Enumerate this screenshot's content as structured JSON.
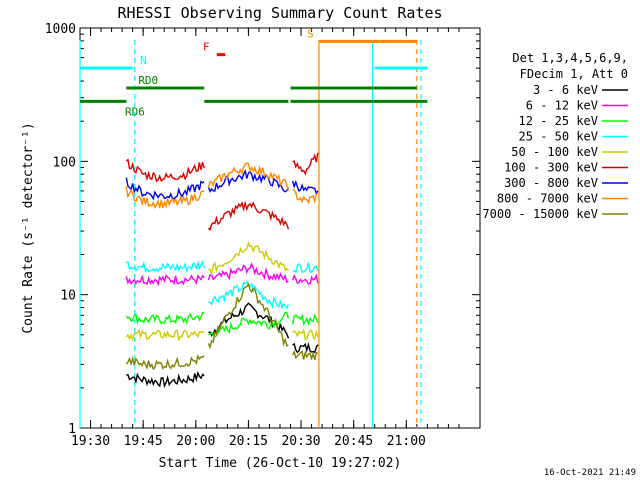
{
  "chart_data": {
    "type": "line",
    "title": "RHESSI Observing Summary Count Rates",
    "xlabel": "Start Time (26-Oct-10 19:27:02)",
    "ylabel": "Count Rate (s⁻¹ detector⁻¹)",
    "yscale": "log",
    "ylim": [
      1,
      1000
    ],
    "x_range_minutes": [
      19.45,
      21.35
    ],
    "xticks": [
      {
        "label": "19:30",
        "value": 19.5
      },
      {
        "label": "19:45",
        "value": 19.75
      },
      {
        "label": "20:00",
        "value": 20.0
      },
      {
        "label": "20:15",
        "value": 20.25
      },
      {
        "label": "20:30",
        "value": 20.5
      },
      {
        "label": "20:45",
        "value": 20.75
      },
      {
        "label": "21:00",
        "value": 21.0
      }
    ],
    "yticks": [
      {
        "label": "1",
        "value": 1
      },
      {
        "label": "10",
        "value": 10
      },
      {
        "label": "100",
        "value": 100
      },
      {
        "label": "1000",
        "value": 1000
      }
    ],
    "legend_header": [
      "Det 1,3,4,5,6,9,",
      "FDecim 1, Att 0"
    ],
    "legend_position": "right",
    "timestamp": "16-Oct-2021 21:49",
    "series": [
      {
        "name": "3 - 6 keV",
        "color": "#000000",
        "segments": [
          {
            "x": [
              19.67,
              19.75,
              19.85,
              19.95,
              20.04
            ],
            "y": [
              2.5,
              2.3,
              2.2,
              2.3,
              2.5
            ]
          },
          {
            "x": [
              20.06,
              20.15,
              20.25,
              20.35,
              20.44
            ],
            "y": [
              5,
              6.5,
              8,
              6.5,
              5
            ]
          },
          {
            "x": [
              20.46,
              20.52,
              20.58
            ],
            "y": [
              4,
              4,
              4
            ]
          }
        ]
      },
      {
        "name": "6 - 12 keV",
        "color": "#ff00ff",
        "segments": [
          {
            "x": [
              19.67,
              19.75,
              19.85,
              19.95,
              20.04
            ],
            "y": [
              13,
              13,
              13,
              13,
              13
            ]
          },
          {
            "x": [
              20.06,
              20.15,
              20.25,
              20.35,
              20.44
            ],
            "y": [
              13,
              14,
              16,
              14,
              13
            ]
          },
          {
            "x": [
              20.46,
              20.52,
              20.58
            ],
            "y": [
              13,
              13,
              13
            ]
          }
        ]
      },
      {
        "name": "12 - 25 keV",
        "color": "#00ff00",
        "segments": [
          {
            "x": [
              19.67,
              19.75,
              19.85,
              19.95,
              20.04
            ],
            "y": [
              7,
              6.5,
              6.5,
              6.5,
              7
            ]
          },
          {
            "x": [
              20.06,
              20.15,
              20.25,
              20.35,
              20.44
            ],
            "y": [
              5,
              5.5,
              6.5,
              6,
              7
            ]
          },
          {
            "x": [
              20.46,
              20.52,
              20.58
            ],
            "y": [
              6.5,
              6.5,
              6.5
            ]
          }
        ]
      },
      {
        "name": "25 - 50 keV",
        "color": "#00ffff",
        "segments": [
          {
            "x": [
              19.67,
              19.75,
              19.85,
              19.95,
              20.04
            ],
            "y": [
              17,
              16,
              16,
              16,
              17
            ]
          },
          {
            "x": [
              20.06,
              20.15,
              20.25,
              20.35,
              20.44
            ],
            "y": [
              9,
              10,
              12,
              9,
              8
            ]
          },
          {
            "x": [
              20.46,
              20.52,
              20.58
            ],
            "y": [
              16,
              16,
              16
            ]
          }
        ]
      },
      {
        "name": "50 - 100 keV",
        "color": "#cccc00",
        "segments": [
          {
            "x": [
              19.67,
              19.75,
              19.85,
              19.95,
              20.04
            ],
            "y": [
              5,
              5,
              5,
              5,
              5
            ]
          },
          {
            "x": [
              20.06,
              20.15,
              20.25,
              20.35,
              20.44
            ],
            "y": [
              15,
              18,
              24,
              19,
              15
            ]
          },
          {
            "x": [
              20.46,
              20.52,
              20.58
            ],
            "y": [
              5,
              5,
              5
            ]
          }
        ]
      },
      {
        "name": "100 - 300 keV",
        "color": "#dd0000",
        "segments": [
          {
            "x": [
              19.67,
              19.75,
              19.85,
              19.95,
              20.04
            ],
            "y": [
              98,
              80,
              75,
              80,
              95
            ]
          },
          {
            "x": [
              20.06,
              20.15,
              20.25,
              20.35,
              20.44
            ],
            "y": [
              32,
              40,
              48,
              40,
              33
            ]
          },
          {
            "x": [
              20.46,
              20.52,
              20.58
            ],
            "y": [
              95,
              85,
              110
            ]
          }
        ]
      },
      {
        "name": "300 - 800 keV",
        "color": "#0000ee",
        "segments": [
          {
            "x": [
              19.67,
              19.75,
              19.85,
              19.95,
              20.04
            ],
            "y": [
              70,
              58,
              55,
              58,
              68
            ]
          },
          {
            "x": [
              20.06,
              20.15,
              20.25,
              20.35,
              20.44
            ],
            "y": [
              60,
              72,
              80,
              72,
              60
            ]
          },
          {
            "x": [
              20.46,
              20.52,
              20.58
            ],
            "y": [
              70,
              60,
              60
            ]
          }
        ]
      },
      {
        "name": "800 - 7000 keV",
        "color": "#ff8800",
        "segments": [
          {
            "x": [
              19.67,
              19.75,
              19.85,
              19.95,
              20.04
            ],
            "y": [
              60,
              50,
              48,
              50,
              58
            ]
          },
          {
            "x": [
              20.06,
              20.15,
              20.25,
              20.35,
              20.44
            ],
            "y": [
              65,
              80,
              92,
              80,
              65
            ]
          },
          {
            "x": [
              20.46,
              20.52,
              20.58
            ],
            "y": [
              58,
              50,
              55
            ]
          }
        ]
      },
      {
        "name": "7000 - 15000 keV",
        "color": "#808000",
        "segments": [
          {
            "x": [
              19.67,
              19.75,
              19.85,
              19.95,
              20.04
            ],
            "y": [
              3.2,
              3.0,
              3.0,
              3.1,
              3.3
            ]
          },
          {
            "x": [
              20.06,
              20.15,
              20.25,
              20.35,
              20.44
            ],
            "y": [
              4,
              7,
              12,
              7,
              4
            ]
          },
          {
            "x": [
              20.46,
              20.52,
              20.58
            ],
            "y": [
              3.5,
              3.5,
              3.5
            ]
          }
        ]
      }
    ],
    "vertical_lines": [
      {
        "x": 19.45,
        "color": "#00ffff",
        "style": "solid"
      },
      {
        "x": 19.71,
        "color": "#00ffff",
        "style": "dashed"
      },
      {
        "x": 20.585,
        "color": "#ff8800",
        "style": "solid"
      },
      {
        "x": 20.84,
        "color": "#00ffff",
        "style": "solid"
      },
      {
        "x": 21.05,
        "color": "#ff8800",
        "style": "dashed"
      },
      {
        "x": 21.07,
        "color": "#00ffff",
        "style": "dashed"
      }
    ],
    "flag_bars": [
      {
        "label": "N",
        "color": "#00ffff",
        "decade": 2.7,
        "segments": [
          [
            19.45,
            19.7
          ],
          [
            20.85,
            21.1
          ]
        ]
      },
      {
        "label": "RD0",
        "color": "#008000",
        "decade": 2.55,
        "segments": [
          [
            19.67,
            20.04
          ],
          [
            20.45,
            21.05
          ]
        ]
      },
      {
        "label": "RD6",
        "color": "#008000",
        "decade": 2.45,
        "segments": [
          [
            19.45,
            19.67
          ],
          [
            20.04,
            20.44
          ],
          [
            20.45,
            21.1
          ]
        ]
      },
      {
        "label": "F",
        "color": "#ff0000",
        "decade": 2.8,
        "segments": [
          [
            20.1,
            20.14
          ]
        ]
      },
      {
        "label": "S",
        "color": "#ff8800",
        "decade": 2.9,
        "segments": [
          [
            20.585,
            21.05
          ]
        ]
      }
    ]
  }
}
